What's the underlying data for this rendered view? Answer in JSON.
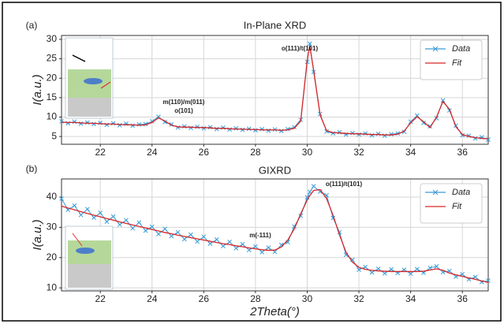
{
  "chart_data": [
    {
      "type": "line",
      "label": "(a)",
      "title": "In-Plane XRD",
      "ylabel": "I(a.u.)",
      "x": [
        20.5,
        20.75,
        21,
        21.25,
        21.5,
        21.75,
        22,
        22.25,
        22.5,
        22.75,
        23,
        23.25,
        23.5,
        23.75,
        24,
        24.25,
        24.5,
        24.75,
        25,
        25.25,
        25.5,
        25.75,
        26,
        26.25,
        26.5,
        26.75,
        27,
        27.25,
        27.5,
        27.75,
        28,
        28.25,
        28.5,
        28.75,
        29,
        29.25,
        29.5,
        29.75,
        30,
        30.1,
        30.25,
        30.5,
        30.75,
        31,
        31.25,
        31.5,
        31.75,
        32,
        32.25,
        32.5,
        32.75,
        33,
        33.25,
        33.5,
        33.75,
        34,
        34.25,
        34.5,
        34.75,
        35,
        35.25,
        35.5,
        35.75,
        36,
        36.25,
        36.5,
        36.75,
        37
      ],
      "series": [
        {
          "name": "Data",
          "color": "#3c9bd6",
          "marker": "x",
          "values": [
            8.9,
            8.4,
            8.8,
            8.3,
            8.6,
            8.2,
            8.5,
            8.0,
            8.4,
            7.9,
            8.3,
            7.8,
            8.1,
            8.2,
            8.9,
            10.1,
            8.7,
            8.1,
            7.3,
            7.6,
            7.2,
            7.5,
            7.1,
            7.4,
            6.9,
            7.3,
            6.8,
            7.1,
            6.7,
            7.0,
            6.6,
            6.9,
            6.5,
            6.8,
            6.4,
            6.9,
            7.4,
            9.3,
            24.2,
            28.9,
            21.6,
            10.8,
            6.3,
            5.8,
            6.1,
            5.5,
            5.9,
            5.5,
            5.8,
            5.3,
            5.7,
            5.2,
            5.6,
            5.8,
            6.2,
            8.8,
            10.4,
            8.5,
            7.6,
            9.7,
            14.3,
            11.7,
            7.8,
            5.3,
            5.2,
            4.5,
            4.8,
            4.2
          ]
        },
        {
          "name": "Fit",
          "color": "#d62728",
          "values": [
            8.7,
            8.6,
            8.6,
            8.5,
            8.4,
            8.4,
            8.3,
            8.2,
            8.2,
            8.1,
            8.0,
            8.0,
            7.9,
            8.0,
            8.6,
            9.8,
            9.0,
            7.9,
            7.5,
            7.4,
            7.4,
            7.3,
            7.3,
            7.2,
            7.1,
            7.1,
            7.0,
            6.9,
            6.9,
            6.8,
            6.8,
            6.7,
            6.7,
            6.7,
            6.6,
            6.7,
            7.1,
            9.0,
            24.6,
            28.3,
            22.0,
            10.5,
            6.5,
            6.0,
            5.9,
            5.8,
            5.7,
            5.7,
            5.6,
            5.5,
            5.5,
            5.4,
            5.4,
            5.6,
            6.4,
            8.5,
            10.1,
            8.8,
            7.3,
            10.0,
            14.0,
            12.0,
            7.5,
            5.5,
            5.0,
            4.7,
            4.5,
            4.4
          ]
        }
      ],
      "annotations": [
        "o(111)/t(101)",
        "m(110)/m(011)",
        "o(101)"
      ],
      "xlim": [
        20.5,
        37
      ],
      "xticks": [
        22,
        24,
        26,
        28,
        30,
        32,
        34,
        36
      ],
      "ylim": [
        3,
        31
      ],
      "yticks": [
        5,
        10,
        15,
        20,
        25,
        30
      ],
      "grid": true,
      "legend": "upper right"
    },
    {
      "type": "line",
      "label": "(b)",
      "title": "GIXRD",
      "ylabel": "I(a.u.)",
      "xlabel": "2Theta(°)",
      "x": [
        20.5,
        20.75,
        21,
        21.25,
        21.5,
        21.75,
        22,
        22.25,
        22.5,
        22.75,
        23,
        23.25,
        23.5,
        23.75,
        24,
        24.25,
        24.5,
        24.75,
        25,
        25.25,
        25.5,
        25.75,
        26,
        26.25,
        26.5,
        26.75,
        27,
        27.25,
        27.5,
        27.75,
        28,
        28.25,
        28.5,
        28.75,
        29,
        29.25,
        29.5,
        29.75,
        30,
        30.1,
        30.25,
        30.5,
        30.75,
        31,
        31.25,
        31.5,
        31.75,
        32,
        32.25,
        32.5,
        32.75,
        33,
        33.25,
        33.5,
        33.75,
        34,
        34.25,
        34.5,
        34.75,
        35,
        35.25,
        35.5,
        35.75,
        36,
        36.25,
        36.5,
        36.75,
        37
      ],
      "series": [
        {
          "name": "Data",
          "color": "#3c9bd6",
          "marker": "x",
          "values": [
            39.5,
            35.8,
            37.2,
            34.1,
            36.0,
            33.2,
            34.8,
            31.9,
            33.6,
            30.9,
            32.4,
            29.7,
            31.6,
            28.9,
            30.2,
            27.8,
            29.5,
            27.1,
            28.4,
            26.1,
            27.6,
            25.3,
            26.9,
            24.6,
            26.0,
            23.8,
            25.2,
            23.1,
            24.4,
            22.5,
            23.7,
            21.8,
            23.3,
            21.9,
            24.2,
            25.1,
            30.3,
            33.8,
            39.9,
            41.7,
            43.6,
            41.8,
            40.6,
            33.1,
            28.4,
            20.9,
            19.3,
            16.0,
            16.9,
            15.1,
            16.3,
            14.8,
            16.1,
            14.9,
            16.0,
            14.7,
            16.2,
            15.0,
            16.6,
            17.1,
            15.2,
            15.6,
            13.7,
            14.5,
            12.8,
            13.6,
            11.9,
            12.4
          ]
        },
        {
          "name": "Fit",
          "color": "#d62728",
          "values": [
            37.0,
            36.4,
            35.8,
            35.2,
            34.6,
            34.0,
            33.5,
            32.9,
            32.4,
            31.8,
            31.3,
            30.8,
            30.3,
            29.8,
            29.3,
            28.8,
            28.3,
            27.9,
            27.4,
            27.0,
            26.6,
            26.2,
            25.8,
            25.4,
            25.0,
            24.6,
            24.3,
            23.9,
            23.6,
            23.2,
            22.9,
            22.6,
            22.4,
            22.5,
            23.5,
            25.8,
            29.5,
            34.5,
            39.0,
            40.5,
            42.2,
            42.5,
            39.5,
            34.0,
            27.5,
            21.8,
            18.5,
            16.8,
            16.1,
            15.8,
            15.6,
            15.5,
            15.4,
            15.4,
            15.4,
            15.4,
            15.4,
            15.5,
            15.9,
            16.3,
            15.8,
            14.9,
            14.3,
            13.8,
            13.3,
            12.8,
            12.3,
            11.8
          ]
        }
      ],
      "annotations": [
        "o(111)/t(101)",
        "m(-111)"
      ],
      "xlim": [
        20.5,
        37
      ],
      "xticks": [
        22,
        24,
        26,
        28,
        30,
        32,
        34,
        36
      ],
      "ylim": [
        9,
        46
      ],
      "yticks": [
        10,
        20,
        30,
        40
      ],
      "grid": true,
      "legend": "upper right"
    }
  ]
}
